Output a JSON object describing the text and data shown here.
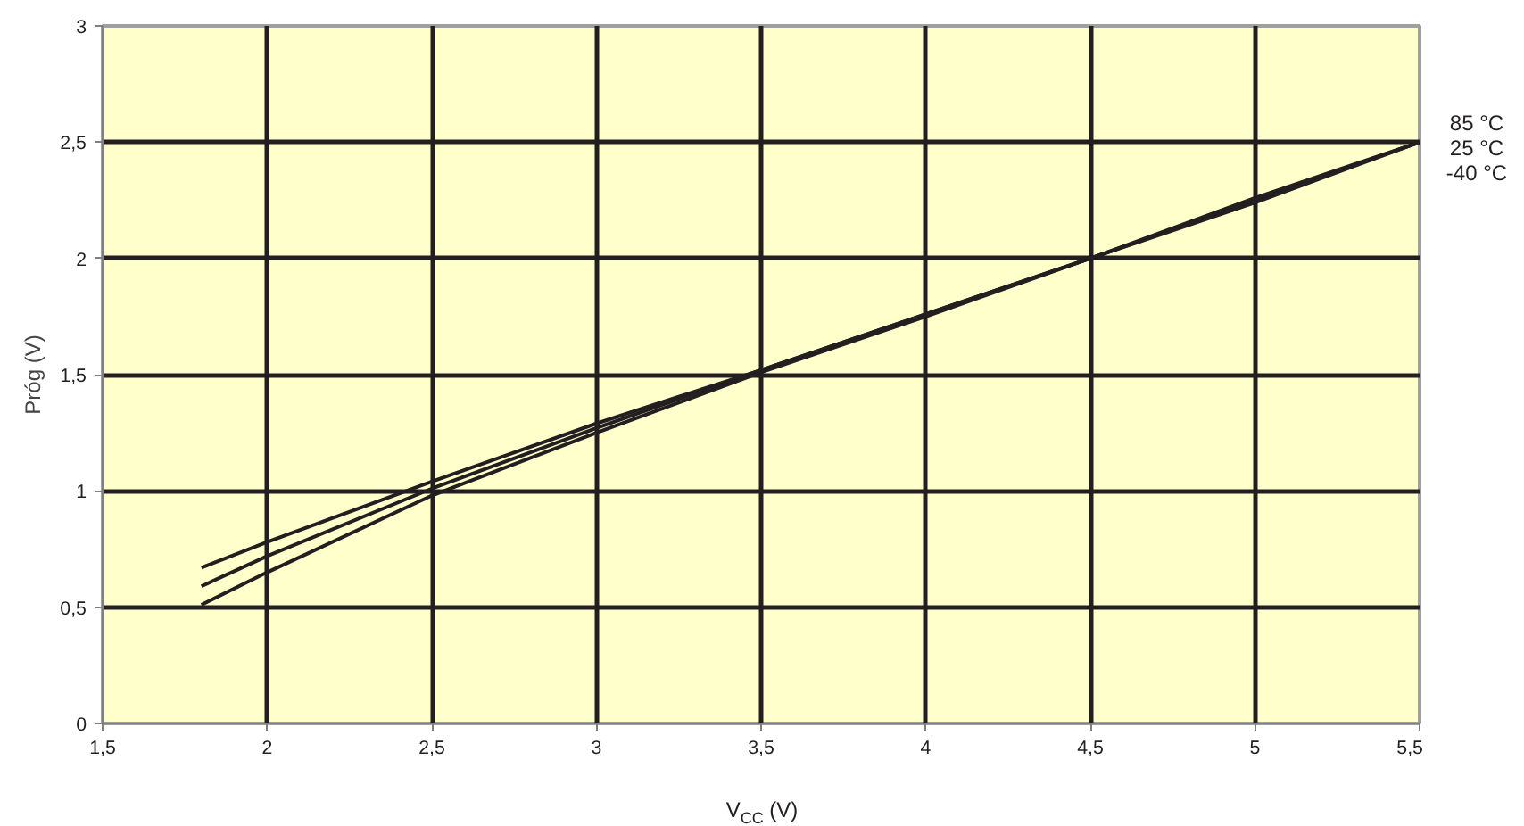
{
  "chart_data": {
    "type": "line",
    "xlabel": "V$_{CC}$ (V)",
    "ylabel": "Próg (V)",
    "x": [
      1.8,
      2,
      2.5,
      3,
      3.5,
      4,
      4.5,
      5,
      5.5
    ],
    "series": [
      {
        "name": "85 °C",
        "color": "#231f20",
        "values": [
          0.67,
          0.78,
          1.04,
          1.29,
          1.52,
          1.76,
          2.0,
          2.26,
          2.5
        ]
      },
      {
        "name": "25 °C",
        "color": "#231f20",
        "values": [
          0.59,
          0.72,
          1.01,
          1.27,
          1.52,
          1.76,
          2.0,
          2.25,
          2.5
        ]
      },
      {
        "name": "-40 °C",
        "color": "#231f20",
        "values": [
          0.51,
          0.65,
          0.98,
          1.25,
          1.51,
          1.75,
          2.0,
          2.24,
          2.5
        ]
      }
    ],
    "xlim": [
      1.5,
      5.5
    ],
    "ylim": [
      0,
      3
    ],
    "xticks": [
      {
        "value": 1.5,
        "label": "1,5"
      },
      2,
      {
        "value": 2.5,
        "label": "2,5"
      },
      3,
      {
        "value": 3.5,
        "label": "3,5"
      },
      4,
      {
        "value": 4.5,
        "label": "4,5"
      },
      5,
      {
        "value": 5.5,
        "label": "5,5"
      }
    ],
    "yticks": [
      0,
      {
        "value": 0.5,
        "label": "0,5"
      },
      1,
      {
        "value": 1.5,
        "label": "1,5"
      },
      2,
      {
        "value": 2.5,
        "label": "2,5"
      },
      3
    ],
    "grid": true,
    "legend": false,
    "marker": "none",
    "line_style": "solid"
  }
}
